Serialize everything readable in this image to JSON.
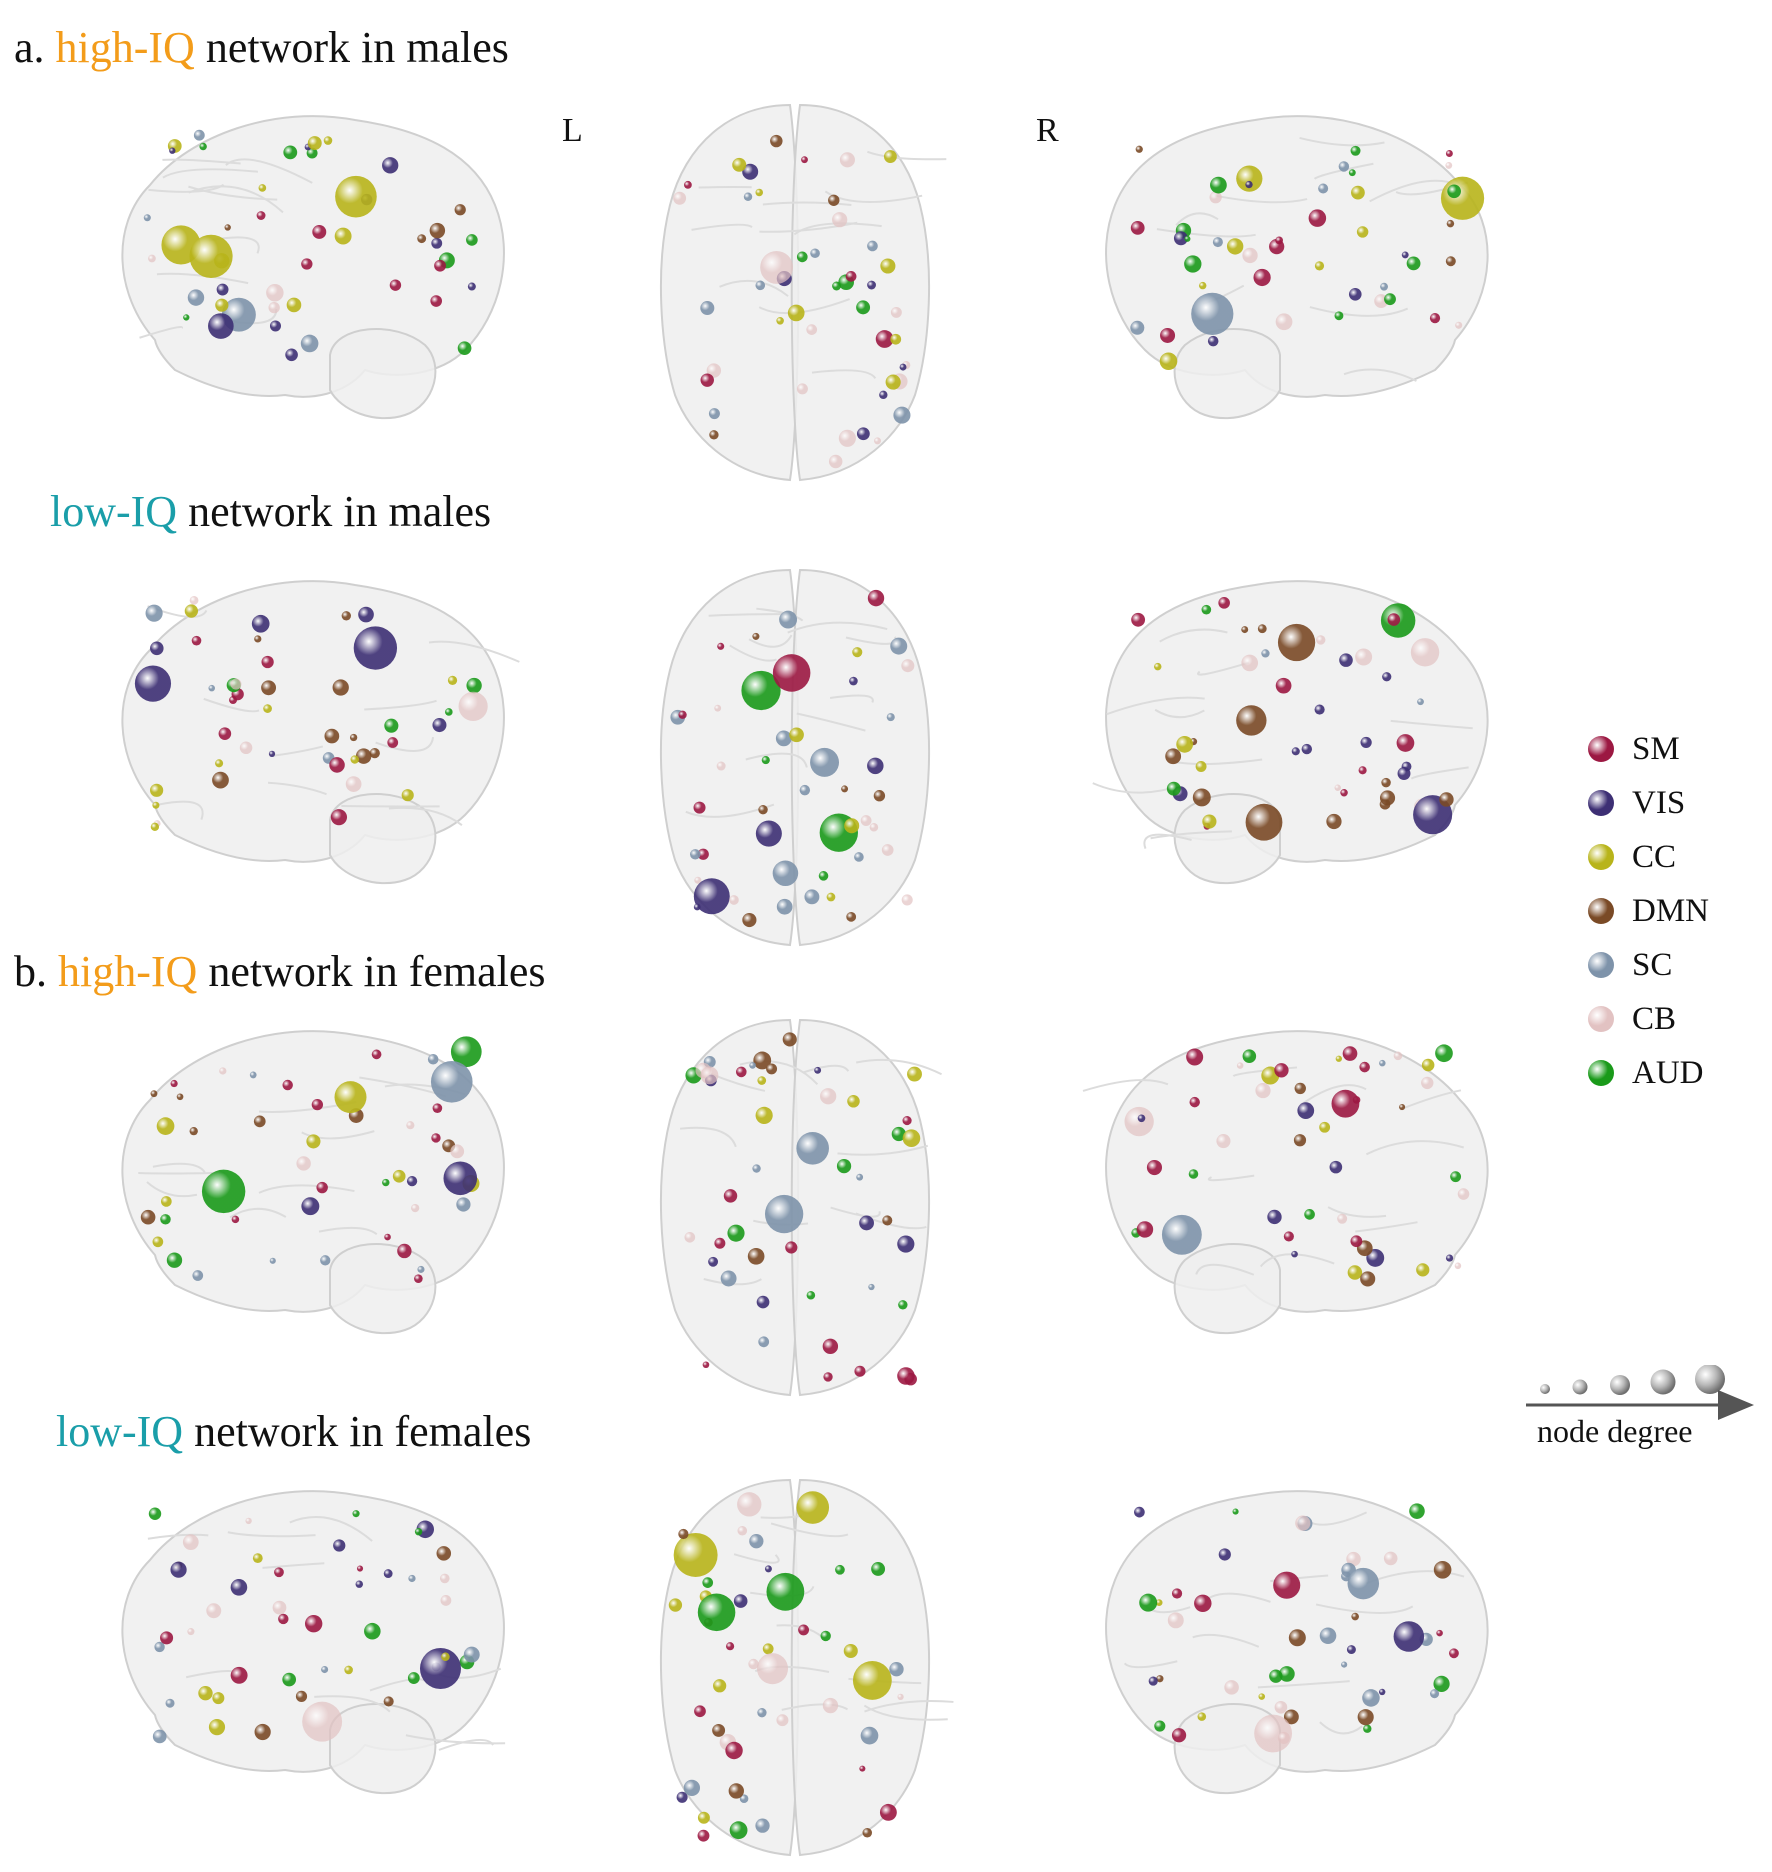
{
  "sections": {
    "a": {
      "prefix": "a.",
      "high_label": "high-IQ",
      "high_suffix": "network in males",
      "low_label": "low-IQ",
      "low_suffix": "network in males"
    },
    "b": {
      "prefix": "b.",
      "high_label": "high-IQ",
      "high_suffix": "network in females",
      "low_label": "low-IQ",
      "low_suffix": "network in females"
    }
  },
  "hemisphere_labels": {
    "left": "L",
    "right": "R"
  },
  "legend": {
    "items": [
      {
        "label": "SM",
        "color": "#9c1842"
      },
      {
        "label": "VIS",
        "color": "#3d2f74"
      },
      {
        "label": "CC",
        "color": "#b8b41a"
      },
      {
        "label": "DMN",
        "color": "#7a4a26"
      },
      {
        "label": "SC",
        "color": "#7e93aa"
      },
      {
        "label": "CB",
        "color": "#e2c2c2"
      },
      {
        "label": "AUD",
        "color": "#1a9a1a"
      }
    ]
  },
  "degree_scale": {
    "label": "node degree"
  }
}
